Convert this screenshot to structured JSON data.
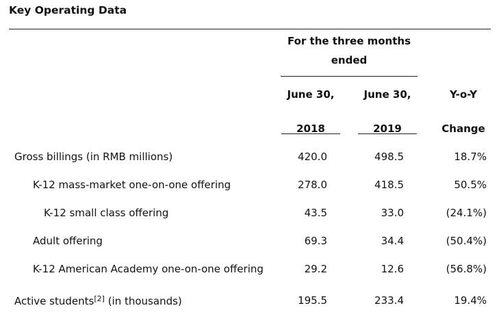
{
  "title": "Key Operating Data",
  "period_header_line1": "For the three months",
  "period_header_line2": "ended",
  "columns": [
    {
      "line1": "June 30,",
      "line2": "2018"
    },
    {
      "line1": "June 30,",
      "line2": "2019"
    },
    {
      "line1": "Y-o-Y",
      "line2": "Change"
    }
  ],
  "rows": [
    {
      "label": "Gross billings (in RMB millions)",
      "v2018": "420.0",
      "v2019": "498.5",
      "yoy": "18.7%"
    },
    {
      "label": "K-12 mass-market one-on-one offering",
      "v2018": "278.0",
      "v2019": "418.5",
      "yoy": "50.5%"
    },
    {
      "label": "K-12 small class offering",
      "v2018": "43.5",
      "v2019": "33.0",
      "yoy": "(24.1%)"
    },
    {
      "label": "Adult offering",
      "v2018": "69.3",
      "v2019": "34.4",
      "yoy": "(50.4%)"
    },
    {
      "label": "K-12 American Academy one-on-one offering",
      "v2018": "29.2",
      "v2019": "12.6",
      "yoy": "(56.8%)"
    },
    {
      "label": "Active students",
      "footnote": "[2]",
      "label_suffix": " (in thousands)",
      "v2018": "195.5",
      "v2019": "233.4",
      "yoy": "19.4%"
    }
  ]
}
